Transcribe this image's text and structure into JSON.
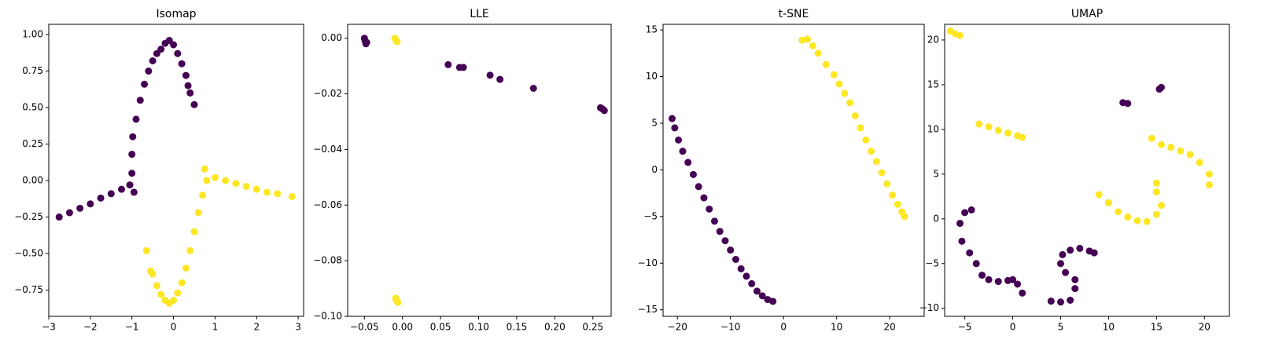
{
  "chart_data": [
    {
      "type": "scatter",
      "title": "Isomap",
      "xlim": [
        -3,
        3.13
      ],
      "ylim": [
        -0.93,
        1.07
      ],
      "xticks": [
        {
          "value": -3,
          "label": "−3"
        },
        {
          "value": -2,
          "label": "−2"
        },
        {
          "value": -1,
          "label": "−1"
        },
        0,
        1,
        2,
        3
      ],
      "yticks": [
        {
          "value": -0.75,
          "label": "−0.75"
        },
        {
          "value": -0.5,
          "label": "−0.50"
        },
        {
          "value": -0.25,
          "label": "−0.25"
        },
        {
          "value": 0,
          "label": "0.00"
        },
        0.25,
        {
          "value": 0.5,
          "label": "0.50"
        },
        0.75,
        {
          "value": 1,
          "label": "1.00"
        }
      ],
      "series": [
        {
          "color": "#440154",
          "x": [
            -2.75,
            -2.5,
            -2.25,
            -2,
            -1.75,
            -1.5,
            -1.25,
            -1.05,
            -0.95,
            -1,
            -1,
            -0.98,
            -0.9,
            -0.8,
            -0.7,
            -0.6,
            -0.5,
            -0.4,
            -0.3,
            -0.2,
            -0.1,
            0,
            0.1,
            0.2,
            0.3,
            0.35,
            0.4,
            0.5
          ],
          "y": [
            -0.25,
            -0.22,
            -0.19,
            -0.16,
            -0.12,
            -0.09,
            -0.06,
            -0.03,
            -0.08,
            0.05,
            0.18,
            0.3,
            0.42,
            0.55,
            0.66,
            0.75,
            0.82,
            0.87,
            0.9,
            0.94,
            0.96,
            0.93,
            0.87,
            0.8,
            0.72,
            0.65,
            0.6,
            0.52
          ]
        },
        {
          "color": "#fde725",
          "x": [
            0.75,
            1,
            1.25,
            1.5,
            1.75,
            2,
            2.25,
            2.5,
            2.85,
            0.8,
            0.7,
            0.6,
            0.5,
            0.4,
            0.3,
            0.2,
            0.1,
            0,
            -0.1,
            -0.2,
            -0.3,
            -0.4,
            -0.5,
            -0.55,
            -0.65
          ],
          "y": [
            0.08,
            0.02,
            0,
            -0.02,
            -0.04,
            -0.06,
            -0.08,
            -0.09,
            -0.11,
            0,
            -0.1,
            -0.22,
            -0.35,
            -0.48,
            -0.6,
            -0.7,
            -0.77,
            -0.82,
            -0.84,
            -0.82,
            -0.78,
            -0.72,
            -0.64,
            -0.62,
            -0.48
          ]
        }
      ]
    },
    {
      "type": "scatter",
      "title": "LLE",
      "xlim": [
        -0.072,
        0.274
      ],
      "ylim": [
        -0.1,
        0.005
      ],
      "xticks": [
        {
          "value": -0.05,
          "label": "−0.05"
        },
        {
          "value": 0,
          "label": "0.00"
        },
        0.05,
        {
          "value": 0.1,
          "label": "0.10"
        },
        0.15,
        {
          "value": 0.2,
          "label": "0.20"
        },
        0.25
      ],
      "yticks": [
        {
          "value": -0.1,
          "label": "−0.10"
        },
        {
          "value": -0.08,
          "label": "−0.08"
        },
        {
          "value": -0.06,
          "label": "−0.06"
        },
        {
          "value": -0.04,
          "label": "−0.04"
        },
        {
          "value": -0.02,
          "label": "−0.02"
        },
        {
          "value": 0,
          "label": "0.00"
        }
      ],
      "series": [
        {
          "color": "#440154",
          "x": [
            -0.05,
            -0.049,
            -0.048,
            -0.047,
            0.06,
            0.075,
            0.08,
            0.115,
            0.128,
            0.172,
            0.26,
            0.263,
            0.265
          ],
          "y": [
            0,
            -0.001,
            -0.002,
            -0.0015,
            -0.0095,
            -0.0105,
            -0.0105,
            -0.0133,
            -0.0148,
            -0.018,
            -0.025,
            -0.0255,
            -0.026
          ]
        },
        {
          "color": "#fde725",
          "x": [
            -0.01,
            -0.009,
            -0.008,
            -0.007,
            -0.009,
            -0.008,
            -0.007,
            -0.006
          ],
          "y": [
            0,
            -0.0005,
            -0.001,
            -0.0012,
            -0.0935,
            -0.094,
            -0.0945,
            -0.095
          ]
        }
      ]
    },
    {
      "type": "scatter",
      "title": "t-SNE",
      "xlim": [
        -22.7,
        26.5
      ],
      "ylim": [
        -15.7,
        15.6
      ],
      "xticks": [
        {
          "value": -20,
          "label": "−20"
        },
        {
          "value": -10,
          "label": "−10"
        },
        0,
        10,
        20
      ],
      "yticks": [
        {
          "value": -15,
          "label": "−15"
        },
        {
          "value": -10,
          "label": "−10"
        },
        {
          "value": -5,
          "label": "−5"
        },
        0,
        5,
        10,
        15
      ],
      "series": [
        {
          "color": "#440154",
          "x": [
            -21,
            -20.5,
            -19.8,
            -19,
            -18,
            -17,
            -16,
            -15,
            -14,
            -13,
            -12,
            -11,
            -10,
            -9,
            -8,
            -7,
            -6,
            -5,
            -4,
            -3,
            -2
          ],
          "y": [
            5.5,
            4.5,
            3.2,
            2,
            0.8,
            -0.5,
            -1.8,
            -3,
            -4.2,
            -5.5,
            -6.6,
            -7.6,
            -8.6,
            -9.6,
            -10.6,
            -11.4,
            -12.2,
            -13,
            -13.5,
            -13.9,
            -14.1
          ]
        },
        {
          "color": "#fde725",
          "x": [
            3.5,
            4.5,
            5.5,
            6.5,
            8,
            9.5,
            10.5,
            11.5,
            12.5,
            13.5,
            14.5,
            15.5,
            16.5,
            17.5,
            18.5,
            19.5,
            20.5,
            21.5,
            22.3,
            22.8
          ],
          "y": [
            13.9,
            14,
            13.3,
            12.5,
            11.3,
            10.2,
            9.2,
            8.2,
            7.2,
            5.8,
            4.5,
            3.2,
            2,
            0.9,
            -0.3,
            -1.5,
            -2.7,
            -3.7,
            -4.5,
            -5
          ]
        }
      ]
    },
    {
      "type": "scatter",
      "title": "UMAP",
      "xlim": [
        -7.1,
        22.6
      ],
      "ylim": [
        -10.9,
        21.75
      ],
      "xticks": [
        {
          "value": -5,
          "label": "−5"
        },
        0,
        5,
        10,
        15,
        20
      ],
      "yticks": [
        {
          "value": -10,
          "label": "−10"
        },
        {
          "value": -5,
          "label": "−5"
        },
        0,
        5,
        10,
        15,
        20
      ],
      "series": [
        {
          "color": "#440154",
          "x": [
            15.3,
            15.5,
            11.5,
            12,
            -5.5,
            -5,
            -4.3,
            -5.3,
            -4.5,
            -3.8,
            -3.2,
            -2.5,
            -1.5,
            -0.5,
            0,
            0.5,
            1,
            4,
            5,
            6,
            5.5,
            5,
            5.2,
            6,
            7,
            8,
            8.5,
            6.5,
            6.5
          ],
          "y": [
            14.5,
            14.7,
            13,
            12.9,
            -0.5,
            0.7,
            1,
            -2.5,
            -3.8,
            -5,
            -6.3,
            -6.8,
            -7,
            -6.9,
            -6.8,
            -7.3,
            -8.3,
            -9.2,
            -9.3,
            -9.1,
            -6,
            -5,
            -4,
            -3.5,
            -3.3,
            -3.6,
            -3.8,
            -6.8,
            -7.8
          ]
        },
        {
          "color": "#fde725",
          "x": [
            -6.5,
            -6,
            -5.5,
            -3.5,
            -2.5,
            -1.5,
            -0.5,
            0.5,
            1,
            9,
            10,
            11,
            12,
            13,
            14,
            15,
            15.5,
            15,
            15,
            14.5,
            15.5,
            16.5,
            17.5,
            18.5,
            19.5,
            20.5,
            20.5
          ],
          "y": [
            21,
            20.7,
            20.5,
            10.6,
            10.3,
            9.9,
            9.6,
            9.3,
            9.1,
            2.7,
            1.8,
            0.8,
            0.2,
            -0.2,
            -0.3,
            0.5,
            1.5,
            3,
            4,
            9,
            8.3,
            8,
            7.6,
            7.2,
            6.3,
            5,
            3.8
          ]
        }
      ]
    }
  ]
}
